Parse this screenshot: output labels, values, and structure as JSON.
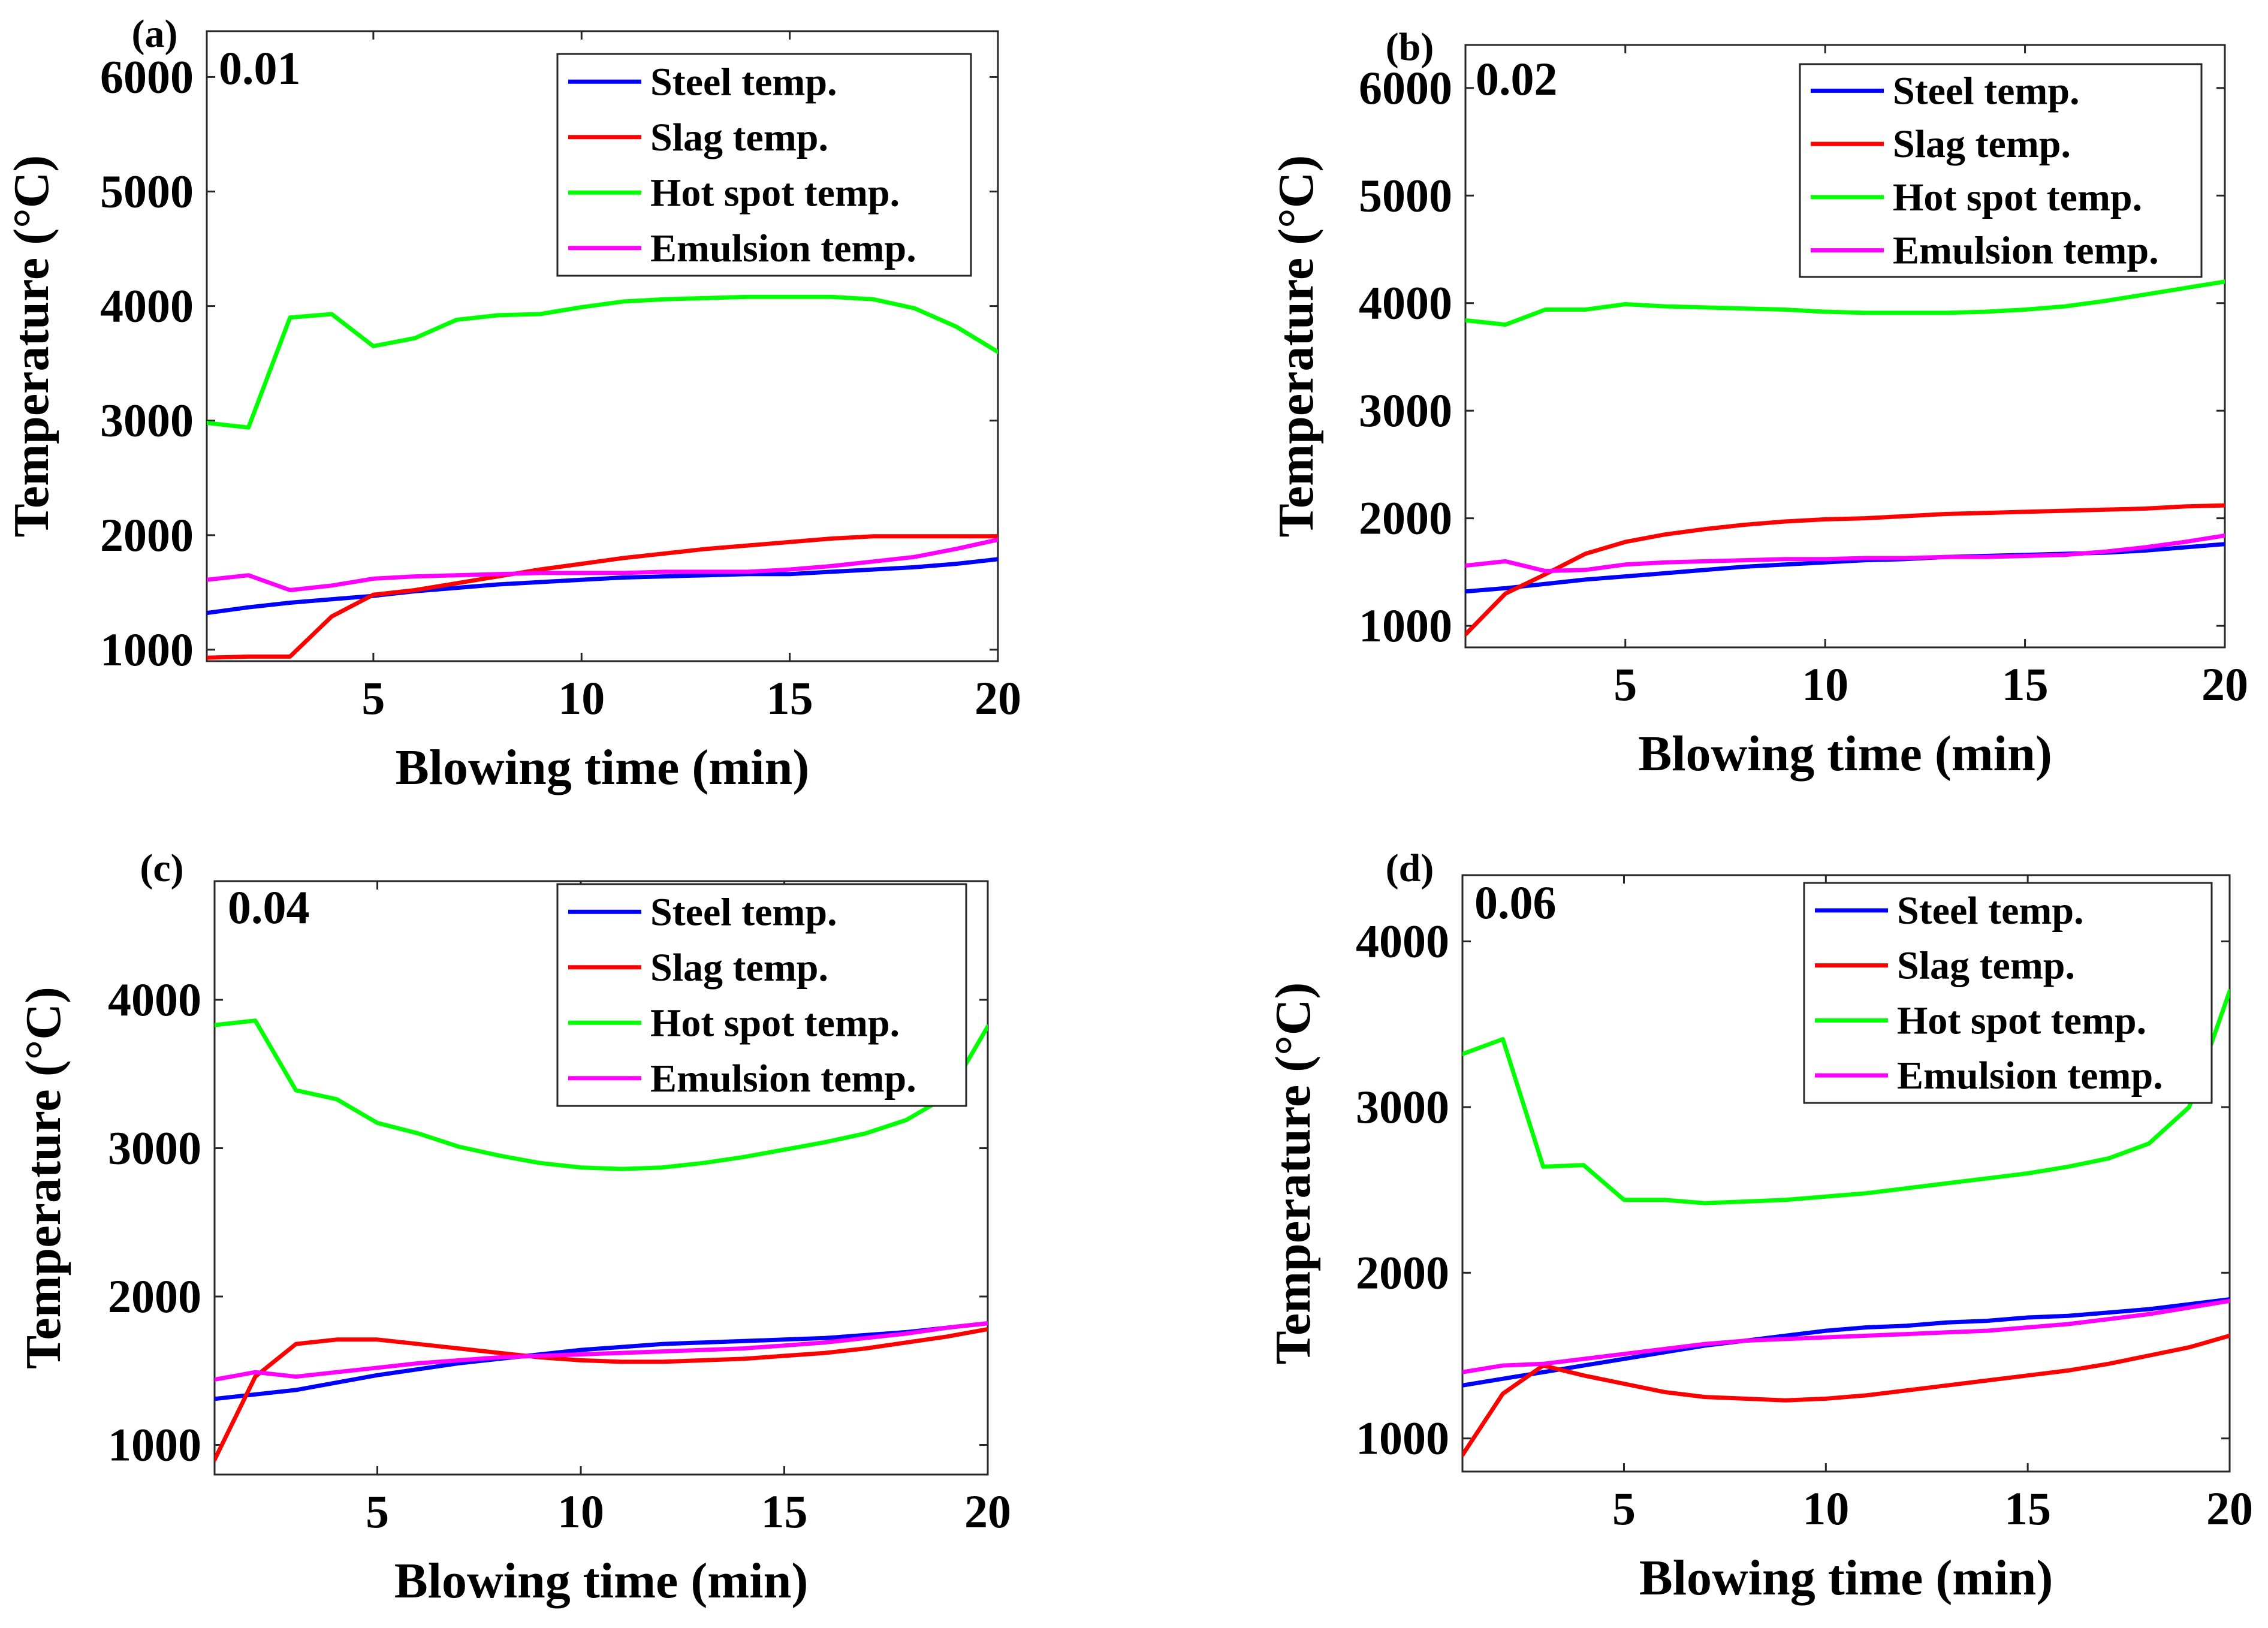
{
  "figure": {
    "panels": [
      {
        "letter": "(a)",
        "tag": "0.01"
      },
      {
        "letter": "(b)",
        "tag": "0.02"
      },
      {
        "letter": "(c)",
        "tag": "0.04"
      },
      {
        "letter": "(d)",
        "tag": "0.06"
      }
    ]
  },
  "chart_data": [
    {
      "type": "line",
      "panel_label": "(a)",
      "annotation": "0.01",
      "xlabel": "Blowing time (min)",
      "ylabel": "Temperature (°C)",
      "xlim": [
        1,
        20
      ],
      "ylim": [
        900,
        6400
      ],
      "xticks": [
        5,
        10,
        15,
        20
      ],
      "yticks": [
        1000,
        2000,
        3000,
        4000,
        5000,
        6000
      ],
      "legend_position": "top-right",
      "x": [
        1,
        2,
        3,
        4,
        5,
        6,
        7,
        8,
        9,
        10,
        11,
        12,
        13,
        14,
        15,
        16,
        17,
        18,
        19,
        20
      ],
      "series": [
        {
          "name": "Steel temp.",
          "color": "#0000ff",
          "values": [
            1320,
            1370,
            1410,
            1440,
            1470,
            1510,
            1540,
            1570,
            1590,
            1610,
            1630,
            1640,
            1650,
            1660,
            1660,
            1680,
            1700,
            1720,
            1750,
            1790
          ]
        },
        {
          "name": "Slag temp.",
          "color": "#ff0000",
          "values": [
            930,
            940,
            940,
            1290,
            1480,
            1520,
            1580,
            1640,
            1700,
            1750,
            1800,
            1840,
            1880,
            1910,
            1940,
            1970,
            1990,
            1990,
            1990,
            1990
          ]
        },
        {
          "name": "Hot spot temp.",
          "color": "#00ff00",
          "values": [
            2980,
            2940,
            3900,
            3930,
            3650,
            3720,
            3880,
            3920,
            3930,
            3990,
            4040,
            4060,
            4070,
            4080,
            4080,
            4080,
            4060,
            3980,
            3820,
            3600
          ]
        },
        {
          "name": "Emulsion temp.",
          "color": "#ff00ff",
          "values": [
            1610,
            1650,
            1520,
            1560,
            1620,
            1640,
            1650,
            1660,
            1670,
            1670,
            1670,
            1680,
            1680,
            1680,
            1700,
            1730,
            1770,
            1810,
            1880,
            1960
          ]
        }
      ]
    },
    {
      "type": "line",
      "panel_label": "(b)",
      "annotation": "0.02",
      "xlabel": "Blowing time (min)",
      "ylabel": "Temperature (°C)",
      "xlim": [
        1,
        20
      ],
      "ylim": [
        800,
        6400
      ],
      "xticks": [
        5,
        10,
        15,
        20
      ],
      "yticks": [
        1000,
        2000,
        3000,
        4000,
        5000,
        6000
      ],
      "legend_position": "top-right",
      "x": [
        1,
        2,
        3,
        4,
        5,
        6,
        7,
        8,
        9,
        10,
        11,
        12,
        13,
        14,
        15,
        16,
        17,
        18,
        19,
        20
      ],
      "series": [
        {
          "name": "Steel temp.",
          "color": "#0000ff",
          "values": [
            1320,
            1350,
            1390,
            1430,
            1460,
            1490,
            1520,
            1550,
            1570,
            1590,
            1610,
            1620,
            1640,
            1650,
            1660,
            1670,
            1680,
            1700,
            1730,
            1760
          ]
        },
        {
          "name": "Slag temp.",
          "color": "#ff0000",
          "values": [
            920,
            1300,
            1480,
            1670,
            1780,
            1850,
            1900,
            1940,
            1970,
            1990,
            2000,
            2020,
            2040,
            2050,
            2060,
            2070,
            2080,
            2090,
            2110,
            2120
          ]
        },
        {
          "name": "Hot spot temp.",
          "color": "#00ff00",
          "values": [
            3840,
            3800,
            3940,
            3940,
            3990,
            3970,
            3960,
            3950,
            3940,
            3920,
            3910,
            3910,
            3910,
            3920,
            3940,
            3970,
            4020,
            4080,
            4140,
            4200
          ]
        },
        {
          "name": "Emulsion temp.",
          "color": "#ff00ff",
          "values": [
            1560,
            1600,
            1510,
            1520,
            1570,
            1590,
            1600,
            1610,
            1620,
            1620,
            1630,
            1630,
            1640,
            1640,
            1650,
            1660,
            1690,
            1730,
            1780,
            1840
          ]
        }
      ]
    },
    {
      "type": "line",
      "panel_label": "(c)",
      "annotation": "0.04",
      "xlabel": "Blowing time (min)",
      "ylabel": "Temperature (°C)",
      "xlim": [
        1,
        20
      ],
      "ylim": [
        800,
        4800
      ],
      "xticks": [
        5,
        10,
        15,
        20
      ],
      "yticks": [
        1000,
        2000,
        3000,
        4000
      ],
      "legend_position": "top-right",
      "x": [
        1,
        2,
        3,
        4,
        5,
        6,
        7,
        8,
        9,
        10,
        11,
        12,
        13,
        14,
        15,
        16,
        17,
        18,
        19,
        20
      ],
      "series": [
        {
          "name": "Steel temp.",
          "color": "#0000ff",
          "values": [
            1310,
            1340,
            1370,
            1420,
            1470,
            1510,
            1550,
            1580,
            1610,
            1640,
            1660,
            1680,
            1690,
            1700,
            1710,
            1720,
            1740,
            1760,
            1790,
            1820
          ]
        },
        {
          "name": "Slag temp.",
          "color": "#ff0000",
          "values": [
            900,
            1460,
            1680,
            1710,
            1710,
            1680,
            1650,
            1620,
            1590,
            1570,
            1560,
            1560,
            1570,
            1580,
            1600,
            1620,
            1650,
            1690,
            1730,
            1780
          ]
        },
        {
          "name": "Hot spot temp.",
          "color": "#00ff00",
          "values": [
            3830,
            3860,
            3390,
            3330,
            3170,
            3100,
            3010,
            2950,
            2900,
            2870,
            2860,
            2870,
            2900,
            2940,
            2990,
            3040,
            3100,
            3190,
            3350,
            3820
          ]
        },
        {
          "name": "Emulsion temp.",
          "color": "#ff00ff",
          "values": [
            1440,
            1490,
            1460,
            1490,
            1520,
            1550,
            1570,
            1590,
            1600,
            1610,
            1620,
            1630,
            1640,
            1650,
            1670,
            1690,
            1720,
            1750,
            1790,
            1820
          ]
        }
      ]
    },
    {
      "type": "line",
      "panel_label": "(d)",
      "annotation": "0.06",
      "xlabel": "Blowing time (min)",
      "ylabel": "Temperature (°C)",
      "xlim": [
        1,
        20
      ],
      "ylim": [
        800,
        4400
      ],
      "xticks": [
        5,
        10,
        15,
        20
      ],
      "yticks": [
        1000,
        2000,
        3000,
        4000
      ],
      "legend_position": "top-right",
      "x": [
        1,
        2,
        3,
        4,
        5,
        6,
        7,
        8,
        9,
        10,
        11,
        12,
        13,
        14,
        15,
        16,
        17,
        18,
        19,
        20
      ],
      "series": [
        {
          "name": "Steel temp.",
          "color": "#0000ff",
          "values": [
            1320,
            1360,
            1400,
            1440,
            1480,
            1520,
            1560,
            1590,
            1620,
            1650,
            1670,
            1680,
            1700,
            1710,
            1730,
            1740,
            1760,
            1780,
            1810,
            1840
          ]
        },
        {
          "name": "Slag temp.",
          "color": "#ff0000",
          "values": [
            900,
            1270,
            1440,
            1380,
            1330,
            1280,
            1250,
            1240,
            1230,
            1240,
            1260,
            1290,
            1320,
            1350,
            1380,
            1410,
            1450,
            1500,
            1550,
            1620
          ]
        },
        {
          "name": "Hot spot temp.",
          "color": "#00ff00",
          "values": [
            3320,
            3410,
            2640,
            2650,
            2440,
            2440,
            2420,
            2430,
            2440,
            2460,
            2480,
            2510,
            2540,
            2570,
            2600,
            2640,
            2690,
            2780,
            3000,
            3700
          ]
        },
        {
          "name": "Emulsion temp.",
          "color": "#ff00ff",
          "values": [
            1400,
            1440,
            1450,
            1480,
            1510,
            1540,
            1570,
            1590,
            1600,
            1610,
            1620,
            1630,
            1640,
            1650,
            1670,
            1690,
            1720,
            1750,
            1790,
            1830
          ]
        }
      ]
    }
  ]
}
